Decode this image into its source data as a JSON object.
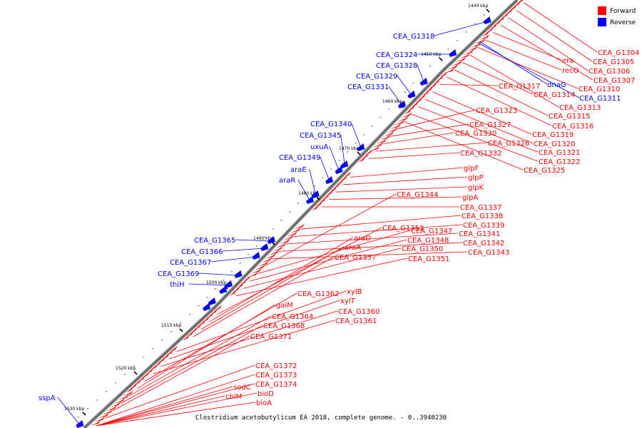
{
  "legend": {
    "forward_label": "Forward",
    "reverse_label": "Reverse",
    "forward_color": "#ff0000",
    "reverse_color": "#0000ff"
  },
  "caption": "Clostridium acetobutylicum EA 2018, complete genome. - 0..3940230",
  "kbp_markers": [
    "1440 kbp",
    "1450 kbp",
    "1460 kbp",
    "1470 kbp",
    "1480 kbp",
    "1490 kbp",
    "1500 kbp",
    "1510 kbp",
    "1520 kbp",
    "1530 kbp"
  ],
  "reverse_labels": [
    "CEA_G1318",
    "CEA_G1324",
    "CEA_G1328",
    "CEA_G1329",
    "CEA_G1331",
    "CEA_G1340",
    "CEA_G1345",
    "uxuA",
    "CEA_G1349",
    "araE",
    "araR",
    "CEA_G1365",
    "CEA_G1366",
    "CEA_G1367",
    "CEA_G1369",
    "thiH",
    "sspA",
    "dnaG",
    "CEA_G1311"
  ],
  "forward_labels": [
    "CEA_G1304",
    "CEA_G1305",
    "CEA_G1306",
    "CEA_G1307",
    "era",
    "recO",
    "CEA_G1310",
    "CEA_G1313",
    "CEA_G1314",
    "CEA_G1315",
    "CEA_G1316",
    "CEA_G1317",
    "CEA_G1319",
    "CEA_G1320",
    "CEA_G1321",
    "CEA_G1322",
    "CEA_G1325",
    "CEA_G1323",
    "CEA_G1327",
    "CEA_G1330",
    "CEA_G1326",
    "CEA_G1332",
    "glpF",
    "glpP",
    "glpK",
    "glpA",
    "CEA_G1337",
    "CEA_G1338",
    "CEA_G1339",
    "CEA_G1341",
    "CEA_G1342",
    "CEA_G1343",
    "CEA_G1344",
    "CEA_G1347",
    "CEA_G1348",
    "CEA_G1350",
    "CEA_G1351",
    "CEA_G1352",
    "araD",
    "araA",
    "CEA_G1357",
    "xylB",
    "xylT",
    "CEA_G1360",
    "CEA_G1361",
    "CEA_G1362",
    "galM",
    "CEA_G1364",
    "CEA_G1368",
    "CEA_G1371",
    "CEA_G1372",
    "CEA_G1373",
    "CEA_G1374",
    "sodC",
    "cbiM",
    "bioD",
    "bioA"
  ]
}
